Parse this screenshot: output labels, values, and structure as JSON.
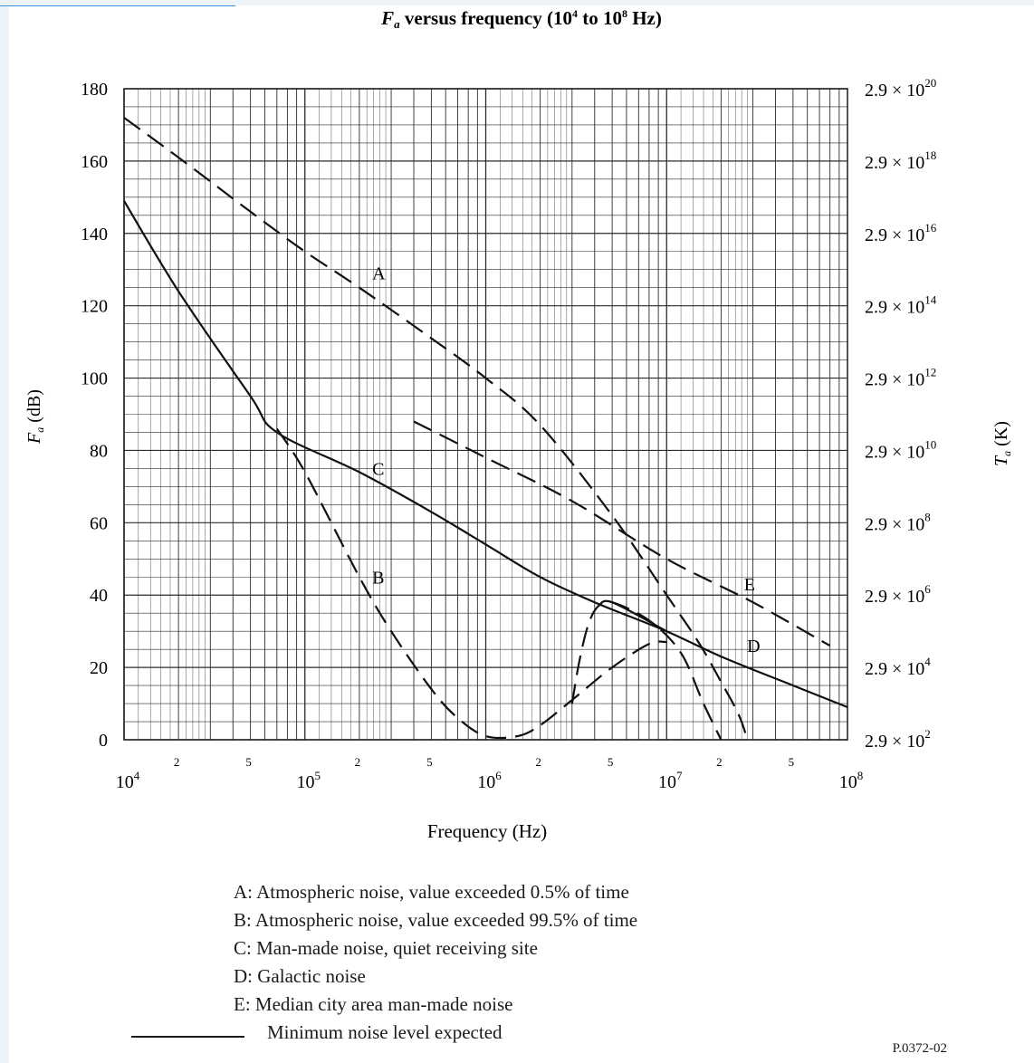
{
  "chart_data": {
    "type": "line",
    "title": "F",
    "title_sub": "a",
    "title_rest": " versus frequency (10",
    "title_exp1": "4",
    "title_mid": " to 10",
    "title_exp2": "8",
    "title_end": " Hz)",
    "xlabel": "Frequency (Hz)",
    "ylabel_main": "F",
    "ylabel_sub": "a",
    "ylabel_rest": " (dB)",
    "y2label_main": "T",
    "y2label_sub": "a",
    "y2label_rest": " (K)",
    "x_scale": "log",
    "xlim": [
      10000,
      100000000
    ],
    "ylim": [
      0,
      180
    ],
    "grid": true,
    "y_ticks": [
      "0",
      "20",
      "40",
      "60",
      "80",
      "100",
      "120",
      "140",
      "160",
      "180"
    ],
    "x_decade_labels": [
      {
        "value": 10000,
        "base": "10",
        "exp": "4"
      },
      {
        "value": 100000,
        "base": "10",
        "exp": "5"
      },
      {
        "value": 1000000,
        "base": "10",
        "exp": "6"
      },
      {
        "value": 10000000,
        "base": "10",
        "exp": "7"
      },
      {
        "value": 100000000,
        "base": "10",
        "exp": "8"
      }
    ],
    "x_minor_labels": [
      {
        "value": 20000,
        "label": "2"
      },
      {
        "value": 50000,
        "label": "5"
      },
      {
        "value": 200000,
        "label": "2"
      },
      {
        "value": 500000,
        "label": "5"
      },
      {
        "value": 2000000,
        "label": "2"
      },
      {
        "value": 5000000,
        "label": "5"
      },
      {
        "value": 20000000,
        "label": "2"
      },
      {
        "value": 50000000,
        "label": "5"
      }
    ],
    "right_axis_labels": [
      {
        "y": 0,
        "base": "2.9 × 10",
        "exp": "2"
      },
      {
        "y": 20,
        "base": "2.9 × 10",
        "exp": "4"
      },
      {
        "y": 40,
        "base": "2.9 × 10",
        "exp": "6"
      },
      {
        "y": 60,
        "base": "2.9 × 10",
        "exp": "8"
      },
      {
        "y": 80,
        "base": "2.9 × 10",
        "exp": "10"
      },
      {
        "y": 100,
        "base": "2.9 × 10",
        "exp": "12"
      },
      {
        "y": 120,
        "base": "2.9 × 10",
        "exp": "14"
      },
      {
        "y": 140,
        "base": "2.9 × 10",
        "exp": "16"
      },
      {
        "y": 160,
        "base": "2.9 × 10",
        "exp": "18"
      },
      {
        "y": 180,
        "base": "2.9 × 10",
        "exp": "20"
      }
    ],
    "series": [
      {
        "id": "A",
        "label": "A",
        "style": "dashed",
        "label_at": [
          220000,
          129
        ],
        "points": [
          [
            10000,
            172
          ],
          [
            20000,
            161
          ],
          [
            50000,
            146
          ],
          [
            100000,
            135
          ],
          [
            200000,
            125
          ],
          [
            500000,
            111
          ],
          [
            1000000,
            100
          ],
          [
            2000000,
            87
          ],
          [
            5000000,
            62
          ],
          [
            10000000,
            40
          ],
          [
            15000000,
            27
          ],
          [
            20000000,
            16
          ],
          [
            25000000,
            7
          ],
          [
            28000000,
            0
          ]
        ]
      },
      {
        "id": "B",
        "label": "B",
        "style": "dashed",
        "label_at": [
          220000,
          45
        ],
        "points": [
          [
            70000,
            86
          ],
          [
            100000,
            74
          ],
          [
            200000,
            45
          ],
          [
            300000,
            30
          ],
          [
            500000,
            14
          ],
          [
            700000,
            6
          ],
          [
            1000000,
            1
          ],
          [
            1500000,
            1
          ],
          [
            2000000,
            4
          ],
          [
            3000000,
            11
          ],
          [
            5000000,
            20
          ],
          [
            8000000,
            26.5
          ],
          [
            10000000,
            27
          ]
        ]
      },
      {
        "id": "C",
        "label": "C",
        "style": "solid",
        "label_at": [
          220000,
          75
        ],
        "points": [
          [
            10000,
            149
          ],
          [
            20000,
            124
          ],
          [
            50000,
            95
          ],
          [
            70000,
            85
          ],
          [
            200000,
            74
          ],
          [
            500000,
            63
          ],
          [
            1000000,
            54
          ],
          [
            2000000,
            45
          ],
          [
            4000000,
            38
          ],
          [
            10000000,
            30
          ],
          [
            20000000,
            23
          ],
          [
            50000000,
            15
          ],
          [
            100000000,
            9
          ]
        ]
      },
      {
        "id": "D",
        "label": "D",
        "style": "dashed",
        "label_at": [
          26000000,
          26
        ],
        "points": [
          [
            3000000,
            10
          ],
          [
            3300000,
            22
          ],
          [
            3700000,
            32
          ],
          [
            4200000,
            37
          ],
          [
            5000000,
            38
          ],
          [
            8000000,
            33
          ],
          [
            12000000,
            24
          ],
          [
            16000000,
            10
          ],
          [
            20000000,
            0
          ]
        ]
      },
      {
        "id": "E",
        "label": "E",
        "style": "dashed",
        "label_at": [
          25000000,
          43
        ],
        "points": [
          [
            400000,
            88
          ],
          [
            1000000,
            78
          ],
          [
            3000000,
            66
          ],
          [
            10000000,
            50
          ],
          [
            30000000,
            38
          ],
          [
            80000000,
            26
          ]
        ]
      },
      {
        "id": "min-low",
        "label": "",
        "style": "solid",
        "label_at": null,
        "points": [
          [
            4200000,
            37
          ],
          [
            5000000,
            38
          ],
          [
            10000000,
            30
          ]
        ]
      }
    ]
  },
  "legend": {
    "items": [
      {
        "text": "A:  Atmospheric noise, value exceeded 0.5% of time"
      },
      {
        "text": "B:  Atmospheric noise, value exceeded 99.5% of time"
      },
      {
        "text": "C:  Man-made noise, quiet receiving site"
      },
      {
        "text": "D:  Galactic noise"
      },
      {
        "text": "E:  Median city area man-made noise"
      }
    ],
    "minimum_label": "Minimum noise level expected"
  },
  "figure_code": "P.0372-02"
}
